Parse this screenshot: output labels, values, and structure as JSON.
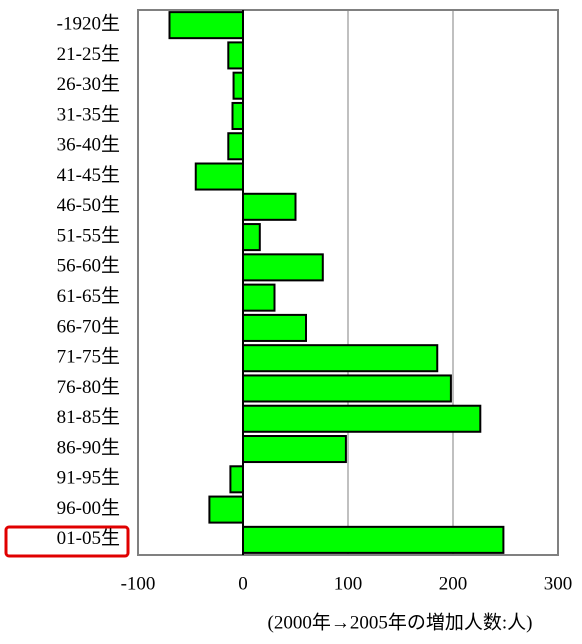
{
  "chart_data": {
    "type": "bar",
    "orientation": "horizontal",
    "categories": [
      "-1920生",
      "21-25生",
      "26-30生",
      "31-35生",
      "36-40生",
      "41-45生",
      "46-50生",
      "51-55生",
      "56-60生",
      "61-65生",
      "66-70生",
      "71-75生",
      "76-80生",
      "81-85生",
      "86-90生",
      "91-95生",
      "96-00生",
      "01-05生"
    ],
    "values": [
      -70,
      -14,
      -9,
      -10,
      -14,
      -45,
      50,
      16,
      76,
      30,
      60,
      185,
      198,
      226,
      98,
      -12,
      -32,
      248
    ],
    "color": "#00ff00",
    "xlim": [
      -100,
      300
    ],
    "xticks": [
      -100,
      0,
      100,
      200,
      300
    ],
    "x_label": "(2000年→2005年の増加人数:人)",
    "grid": true
  }
}
